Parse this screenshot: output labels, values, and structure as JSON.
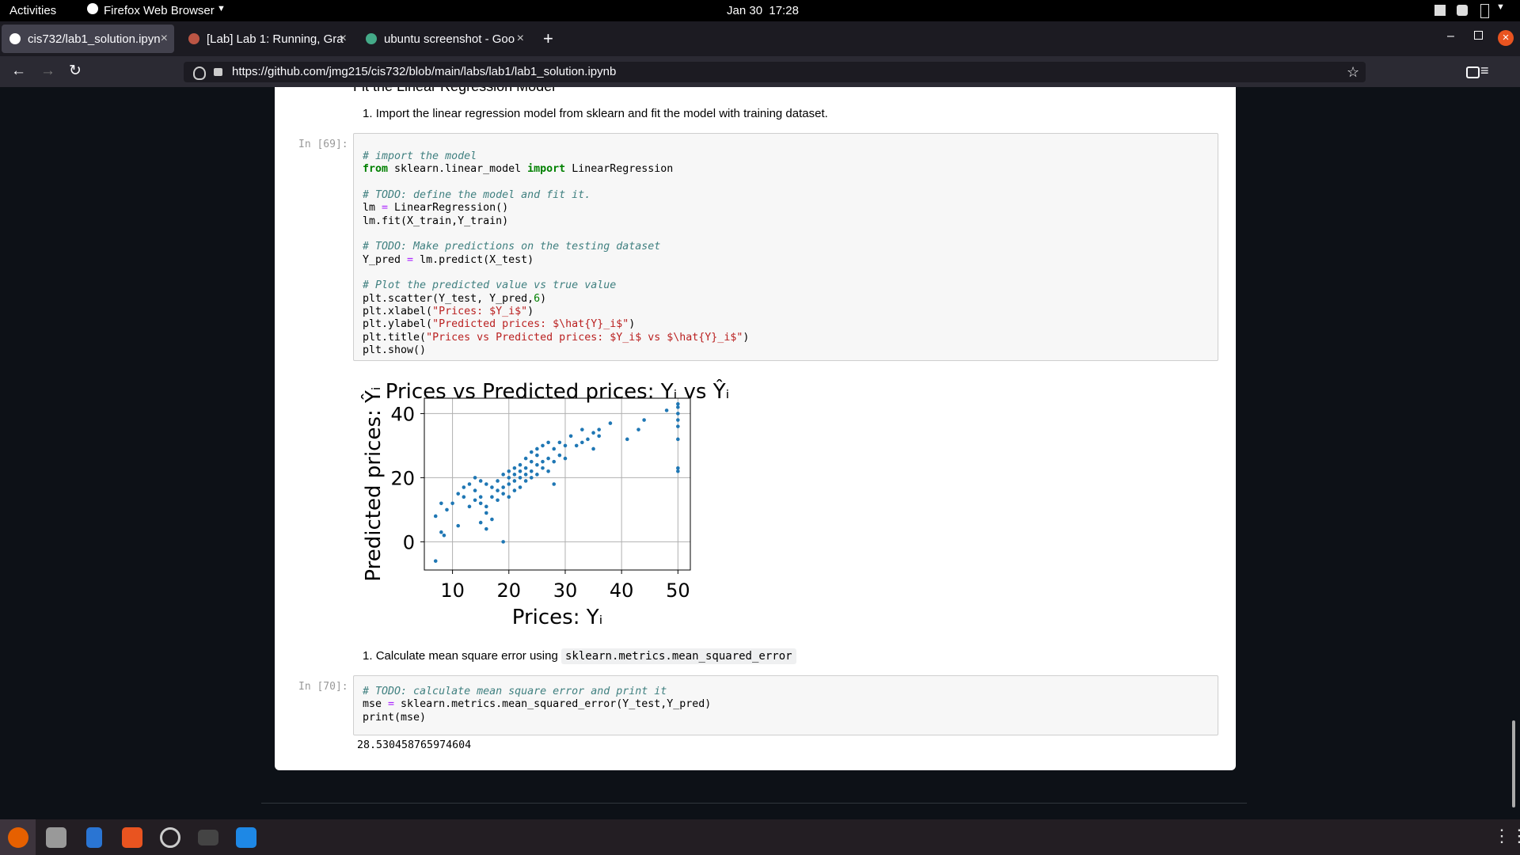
{
  "system_bar": {
    "activities": "Activities",
    "app": "Firefox Web Browser",
    "clock": "Jan 30  17:28"
  },
  "browser": {
    "tabs": [
      "cis732/lab1_solution.ipyn",
      "[Lab] Lab 1: Running, Gra",
      "ubuntu screenshot - Goo"
    ],
    "url": "https://github.com/jmg215/cis732/blob/main/labs/lab1/lab1_solution.ipynb"
  },
  "notebook": {
    "section_heading": "Fit the Linear Regression Model",
    "step1": {
      "marker": "1.",
      "text": "Import the linear regression model from sklearn and fit the model with training dataset."
    },
    "cell69": {
      "prompt": "In [69]:",
      "blocks": [
        [
          "# import the model",
          "from sklearn.linear_model import LinearRegression"
        ],
        [
          "# TODO: define the model and fit it.",
          "lm = LinearRegression()",
          "lm.fit(X_train,Y_train)"
        ],
        [
          "# TODO: Make predictions on the testing dataset",
          "Y_pred = lm.predict(X_test)"
        ],
        [
          "# Plot the predicted value vs true value",
          "plt.scatter(Y_test, Y_pred,6)",
          "plt.xlabel(\"Prices: $Y_i$\")",
          "plt.ylabel(\"Predicted prices: $\\hat{Y}_i$\")",
          "plt.title(\"Prices vs Predicted prices: $Y_i$ vs $\\hat{Y}_i$\")",
          "plt.show()"
        ]
      ]
    },
    "chart": {
      "type": "scatter",
      "title": "Prices vs Predicted prices: Yᵢ vs Ŷᵢ",
      "x_label": "Prices: Yᵢ",
      "y_label": "Predicted prices: Ŷᵢ",
      "color": "#1f77b4",
      "x": [
        7,
        7,
        8,
        8.5,
        8,
        9,
        10,
        11,
        11,
        12,
        12,
        13,
        13,
        14,
        14,
        14,
        15,
        15,
        15,
        15,
        16,
        16,
        16,
        16,
        17,
        17,
        17,
        18,
        18,
        18,
        19,
        19,
        19,
        19,
        20,
        20,
        20,
        20,
        21,
        21,
        21,
        21,
        22,
        22,
        22,
        22,
        23,
        23,
        23,
        23,
        24,
        24,
        24,
        24,
        25,
        25,
        25,
        25,
        26,
        26,
        26,
        27,
        27,
        27,
        28,
        28,
        28,
        29,
        29,
        30,
        30,
        31,
        32,
        33,
        33,
        34,
        35,
        35,
        36,
        36,
        38,
        41,
        43,
        44,
        48,
        50,
        50,
        50,
        50,
        50,
        50,
        50,
        50
      ],
      "y": [
        -6,
        8,
        3,
        2,
        12,
        10,
        12,
        5,
        15,
        14,
        17,
        11,
        18,
        13,
        16,
        20,
        6,
        12,
        14,
        19,
        4,
        9,
        11,
        18,
        7,
        14,
        17,
        13,
        16,
        19,
        0,
        15,
        17,
        21,
        14,
        18,
        20,
        22,
        16,
        19,
        21,
        23,
        17,
        20,
        22,
        24,
        19,
        21,
        23,
        26,
        20,
        22,
        25,
        28,
        21,
        24,
        27,
        29,
        23,
        25,
        30,
        22,
        26,
        31,
        18,
        25,
        29,
        27,
        31,
        26,
        30,
        33,
        30,
        31,
        35,
        32,
        29,
        34,
        33,
        35,
        37,
        32,
        35,
        38,
        41,
        43,
        42,
        40,
        38,
        36,
        32,
        23,
        22
      ],
      "xlim": [
        5,
        52.2
      ],
      "ylim": [
        -8.8,
        44.8
      ],
      "xticks": [
        10,
        20,
        30,
        40,
        50
      ],
      "yticks": [
        0,
        20,
        40
      ],
      "grid": true
    },
    "step2": {
      "marker": "1.",
      "text": "Calculate mean square error using",
      "code": "sklearn.metrics.mean_squared_error"
    },
    "cell70": {
      "prompt": "In [70]:",
      "blocks": [
        [
          "# TODO: calculate mean square error and print it",
          "mse = sklearn.metrics.mean_squared_error(Y_test,Y_pred)",
          "print(mse)"
        ]
      ],
      "output": "28.530458765974604"
    }
  }
}
